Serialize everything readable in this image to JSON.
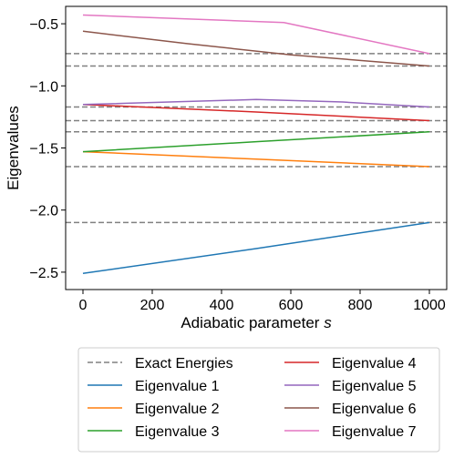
{
  "chart_data": {
    "type": "line",
    "xlabel": "Adiabatic parameter",
    "xlabel_italic": "s",
    "ylabel": "Eigenvalues",
    "xlim": [
      -50,
      1050
    ],
    "ylim": [
      -2.64,
      -0.36
    ],
    "xticks": [
      0,
      200,
      400,
      600,
      800,
      1000
    ],
    "yticks": [
      -2.5,
      -2.0,
      -1.5,
      -1.0,
      -0.5
    ],
    "ytick_labels": [
      "−2.5",
      "−2.0",
      "−1.5",
      "−1.0",
      "−0.5"
    ],
    "legend_position": "below plot, two columns",
    "exact_energies": {
      "name": "Exact Energies",
      "color": "#808080",
      "style": "dashed",
      "values": [
        -0.74,
        -0.84,
        -1.17,
        -1.28,
        -1.37,
        -1.65,
        -2.1
      ]
    },
    "series": [
      {
        "name": "Eigenvalue 1",
        "color": "#1f77b4",
        "x": [
          0,
          500,
          1000
        ],
        "y": [
          -2.51,
          -2.31,
          -2.1
        ]
      },
      {
        "name": "Eigenvalue 2",
        "color": "#ff7f0e",
        "x": [
          0,
          500,
          1000
        ],
        "y": [
          -1.53,
          -1.59,
          -1.65
        ]
      },
      {
        "name": "Eigenvalue 3",
        "color": "#2ca02c",
        "x": [
          0,
          500,
          1000
        ],
        "y": [
          -1.53,
          -1.45,
          -1.37
        ]
      },
      {
        "name": "Eigenvalue 4",
        "color": "#d62728",
        "x": [
          0,
          500,
          1000
        ],
        "y": [
          -1.15,
          -1.21,
          -1.28
        ]
      },
      {
        "name": "Eigenvalue 5",
        "color": "#9467bd",
        "x": [
          0,
          250,
          500,
          750,
          1000
        ],
        "y": [
          -1.15,
          -1.13,
          -1.11,
          -1.13,
          -1.17
        ]
      },
      {
        "name": "Eigenvalue 6",
        "color": "#8c564b",
        "x": [
          0,
          300,
          600,
          1000
        ],
        "y": [
          -0.56,
          -0.66,
          -0.75,
          -0.84
        ]
      },
      {
        "name": "Eigenvalue 7",
        "color": "#e377c2",
        "x": [
          0,
          580,
          1000
        ],
        "y": [
          -0.43,
          -0.49,
          -0.74
        ]
      }
    ]
  }
}
